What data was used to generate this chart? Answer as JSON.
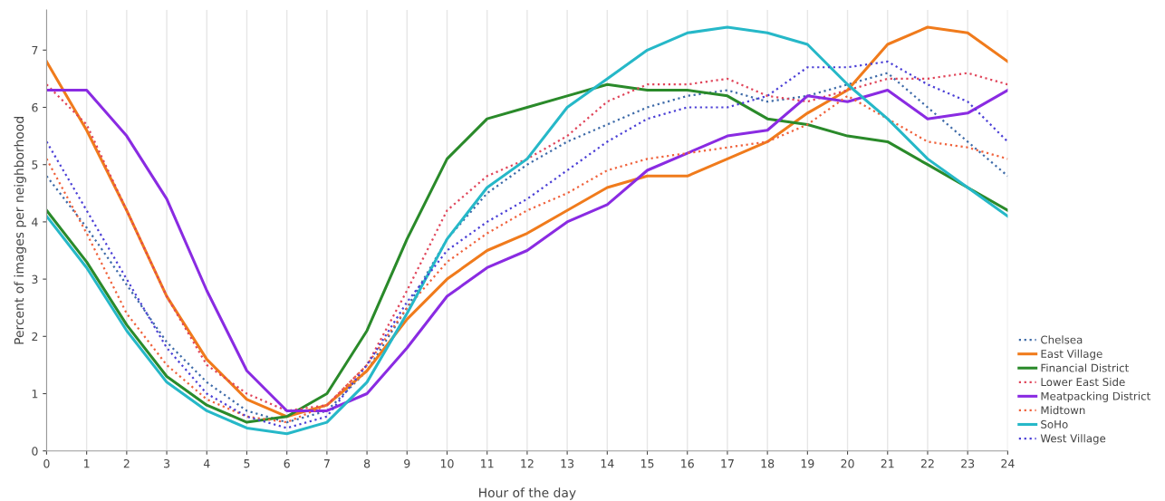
{
  "chart_data": {
    "type": "line",
    "xlabel": "Hour of the day",
    "ylabel": "Percent of images per neighborhood",
    "x": [
      0,
      1,
      2,
      3,
      4,
      5,
      6,
      7,
      8,
      9,
      10,
      11,
      12,
      13,
      14,
      15,
      16,
      17,
      18,
      19,
      20,
      21,
      22,
      23,
      24
    ],
    "xlim": [
      0,
      24
    ],
    "xticks": [
      0,
      1,
      2,
      3,
      4,
      5,
      6,
      7,
      8,
      9,
      10,
      11,
      12,
      13,
      14,
      15,
      16,
      17,
      18,
      19,
      20,
      21,
      22,
      23,
      24
    ],
    "ylim": [
      0,
      7.7
    ],
    "yticks": [
      0,
      1,
      2,
      3,
      4,
      5,
      6,
      7
    ],
    "grid": "x",
    "legend": "bottom right",
    "marker": "none",
    "series": [
      {
        "name": "Chelsea",
        "color": "#3d6aa8",
        "line_style": "dotted",
        "values": [
          4.8,
          3.9,
          2.9,
          1.9,
          1.2,
          0.7,
          0.5,
          0.7,
          1.4,
          2.5,
          3.7,
          4.5,
          5.0,
          5.4,
          5.7,
          6.0,
          6.2,
          6.3,
          6.1,
          6.2,
          6.4,
          6.6,
          6.0,
          5.4,
          4.8
        ]
      },
      {
        "name": "East Village",
        "color": "#f07b1c",
        "line_style": "solid",
        "values": [
          6.8,
          5.6,
          4.2,
          2.7,
          1.6,
          0.9,
          0.6,
          0.8,
          1.4,
          2.3,
          3.0,
          3.5,
          3.8,
          4.2,
          4.6,
          4.8,
          4.8,
          5.1,
          5.4,
          5.9,
          6.3,
          7.1,
          7.4,
          7.3,
          6.8
        ]
      },
      {
        "name": "Financial District",
        "color": "#2a8a2a",
        "line_style": "solid",
        "values": [
          4.2,
          3.3,
          2.2,
          1.3,
          0.8,
          0.5,
          0.6,
          1.0,
          2.1,
          3.7,
          5.1,
          5.8,
          6.0,
          6.2,
          6.4,
          6.3,
          6.3,
          6.2,
          5.8,
          5.7,
          5.5,
          5.4,
          5.0,
          4.6,
          4.2
        ]
      },
      {
        "name": "Lower East Side",
        "color": "#e0455a",
        "line_style": "dotted",
        "values": [
          6.4,
          5.7,
          4.2,
          2.7,
          1.5,
          1.0,
          0.7,
          0.8,
          1.5,
          2.8,
          4.2,
          4.8,
          5.1,
          5.5,
          6.1,
          6.4,
          6.4,
          6.5,
          6.2,
          6.1,
          6.3,
          6.5,
          6.5,
          6.6,
          6.4
        ]
      },
      {
        "name": "Meatpacking District",
        "color": "#8a2be2",
        "line_style": "solid",
        "values": [
          6.3,
          6.3,
          5.5,
          4.4,
          2.8,
          1.4,
          0.7,
          0.7,
          1.0,
          1.8,
          2.7,
          3.2,
          3.5,
          4.0,
          4.3,
          4.9,
          5.2,
          5.5,
          5.6,
          6.2,
          6.1,
          6.3,
          5.8,
          5.9,
          6.3
        ]
      },
      {
        "name": "Midtown",
        "color": "#f0623c",
        "line_style": "dotted",
        "values": [
          5.1,
          3.8,
          2.4,
          1.5,
          0.9,
          0.6,
          0.5,
          0.8,
          1.5,
          2.5,
          3.3,
          3.8,
          4.2,
          4.5,
          4.9,
          5.1,
          5.2,
          5.3,
          5.4,
          5.7,
          6.2,
          5.8,
          5.4,
          5.3,
          5.1
        ]
      },
      {
        "name": "SoHo",
        "color": "#26b8c8",
        "line_style": "solid",
        "values": [
          4.1,
          3.2,
          2.1,
          1.2,
          0.7,
          0.4,
          0.3,
          0.5,
          1.2,
          2.4,
          3.7,
          4.6,
          5.1,
          6.0,
          6.5,
          7.0,
          7.3,
          7.4,
          7.3,
          7.1,
          6.4,
          5.8,
          5.1,
          4.6,
          4.1
        ]
      },
      {
        "name": "West Village",
        "color": "#4b3fd6",
        "line_style": "dotted",
        "values": [
          5.4,
          4.2,
          3.0,
          1.8,
          1.0,
          0.6,
          0.4,
          0.6,
          1.5,
          2.6,
          3.5,
          4.0,
          4.4,
          4.9,
          5.4,
          5.8,
          6.0,
          6.0,
          6.2,
          6.7,
          6.7,
          6.8,
          6.4,
          6.1,
          5.4
        ]
      }
    ]
  }
}
